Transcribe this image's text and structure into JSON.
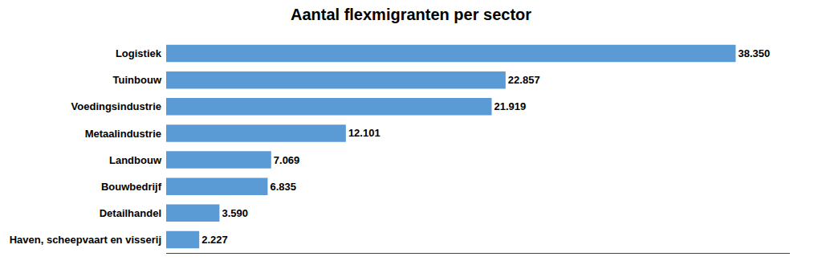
{
  "chart_data": {
    "type": "bar",
    "orientation": "horizontal",
    "title": "Aantal flexmigranten per sector",
    "categories": [
      "Haven, scheepvaart en visserij",
      "Detailhandel",
      "Bouwbedrijf",
      "Landbouw",
      "Metaalindustrie",
      "Voedingsindustrie",
      "Tuinbouw",
      "Logistiek"
    ],
    "values": [
      2227,
      3590,
      6835,
      7069,
      12101,
      21919,
      22857,
      38350
    ],
    "value_labels": [
      "2.227",
      "3.590",
      "6.835",
      "7.069",
      "12.101",
      "21.919",
      "22.857",
      "38.350"
    ],
    "data_labels": true,
    "color": "#5B9BD5",
    "xlim": [
      0,
      42000
    ],
    "xticks": [],
    "grid": false,
    "tick_labels": "y"
  }
}
